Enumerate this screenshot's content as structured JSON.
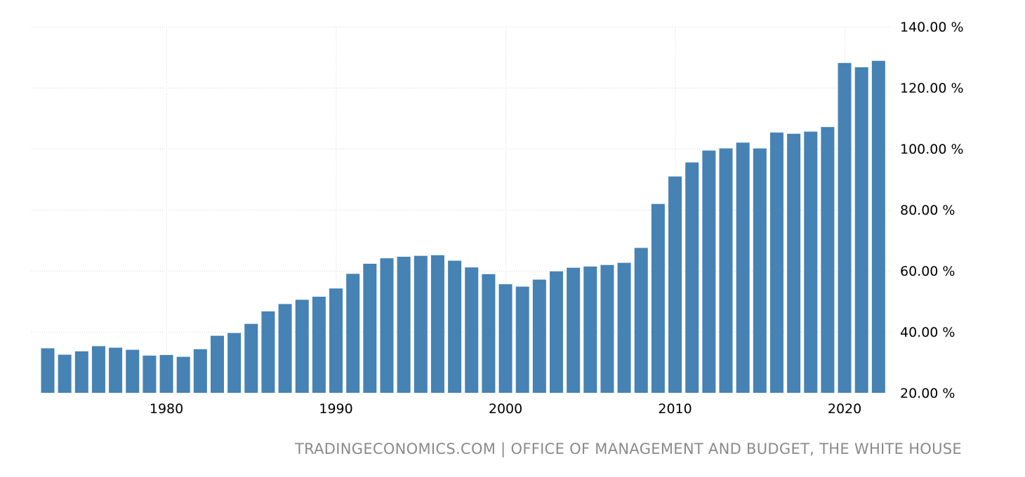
{
  "chart_data": {
    "type": "bar",
    "categories": [
      1973,
      1974,
      1975,
      1976,
      1977,
      1978,
      1979,
      1980,
      1981,
      1982,
      1983,
      1984,
      1985,
      1986,
      1987,
      1988,
      1989,
      1990,
      1991,
      1992,
      1993,
      1994,
      1995,
      1996,
      1997,
      1998,
      1999,
      2000,
      2001,
      2002,
      2003,
      2004,
      2005,
      2006,
      2007,
      2008,
      2009,
      2010,
      2011,
      2012,
      2013,
      2014,
      2015,
      2016,
      2017,
      2018,
      2019,
      2020,
      2021,
      2022
    ],
    "values": [
      34.6,
      32.5,
      33.6,
      35.3,
      34.8,
      34.1,
      32.2,
      32.4,
      31.8,
      34.3,
      38.7,
      39.6,
      42.6,
      46.7,
      49.1,
      50.5,
      51.5,
      54.2,
      59.0,
      62.3,
      64.1,
      64.6,
      64.9,
      65.1,
      63.3,
      61.1,
      58.9,
      55.6,
      54.8,
      57.1,
      59.8,
      61.0,
      61.4,
      61.9,
      62.6,
      67.5,
      81.9,
      90.9,
      95.5,
      99.4,
      100.1,
      102.0,
      100.1,
      105.3,
      104.9,
      105.6,
      107.1,
      128.1,
      126.7,
      128.8
    ],
    "x_ticks": [
      "1980",
      "1990",
      "2000",
      "2010",
      "2020"
    ],
    "y_ticks": [
      "20.00 %",
      "40.00 %",
      "60.00 %",
      "80.00 %",
      "100.00 %",
      "120.00 %",
      "140.00 %"
    ],
    "ylim": [
      20,
      140
    ],
    "grid": true,
    "bar_color": "#4682b4",
    "title": "",
    "xlabel": "",
    "ylabel": ""
  },
  "source_text": "TRADINGECONOMICS.COM | OFFICE OF MANAGEMENT AND BUDGET, THE WHITE HOUSE"
}
